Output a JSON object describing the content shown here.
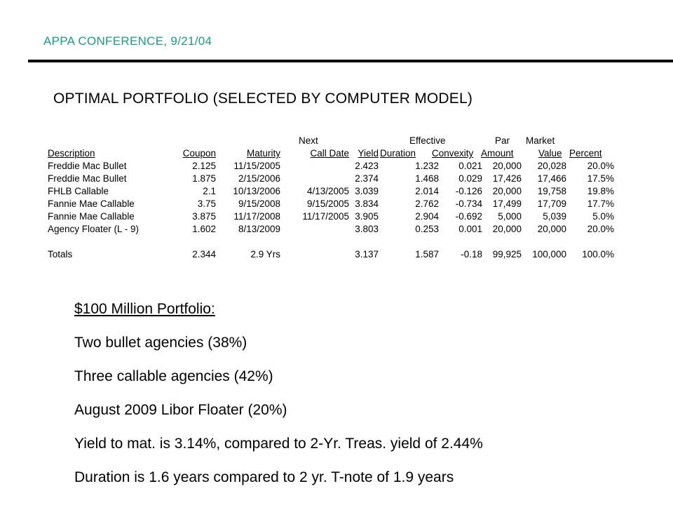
{
  "header": {
    "title": "APPA CONFERENCE, 9/21/04"
  },
  "section_title": "OPTIMAL PORTFOLIO (SELECTED BY COMPUTER MODEL)",
  "table": {
    "header_top": {
      "next": "Next",
      "effective": "Effective",
      "par": "Par",
      "market": "Market"
    },
    "columns": [
      "Description",
      "Coupon",
      "Maturity",
      "Call Date",
      "Yield",
      "Duration",
      "Convexity",
      "Amount",
      "Value",
      "Percent"
    ],
    "rows": [
      {
        "desc": "Freddie Mac Bullet",
        "coupon": "2.125",
        "maturity": "11/15/2005",
        "call": "",
        "yield": "2.423",
        "duration": "1.232",
        "convexity": "0.021",
        "par": "20,000",
        "mv": "20,028",
        "pct": "20.0%"
      },
      {
        "desc": "Freddie Mac Bullet",
        "coupon": "1.875",
        "maturity": "2/15/2006",
        "call": "",
        "yield": "2.374",
        "duration": "1.468",
        "convexity": "0.029",
        "par": "17,426",
        "mv": "17,466",
        "pct": "17.5%"
      },
      {
        "desc": "FHLB Callable",
        "coupon": "2.1",
        "maturity": "10/13/2006",
        "call": "4/13/2005",
        "yield": "3.039",
        "duration": "2.014",
        "convexity": "-0.126",
        "par": "20,000",
        "mv": "19,758",
        "pct": "19.8%"
      },
      {
        "desc": "Fannie Mae Callable",
        "coupon": "3.75",
        "maturity": "9/15/2008",
        "call": "9/15/2005",
        "yield": "3.834",
        "duration": "2.762",
        "convexity": "-0.734",
        "par": "17,499",
        "mv": "17,709",
        "pct": "17.7%"
      },
      {
        "desc": "Fannie Mae Callable",
        "coupon": "3.875",
        "maturity": "11/17/2008",
        "call": "11/17/2005",
        "yield": "3.905",
        "duration": "2.904",
        "convexity": "-0.692",
        "par": "5,000",
        "mv": "5,039",
        "pct": "5.0%"
      },
      {
        "desc": "Agency Floater (L - 9)",
        "coupon": "1.602",
        "maturity": "8/13/2009",
        "call": "",
        "yield": "3.803",
        "duration": "0.253",
        "convexity": "0.001",
        "par": "20,000",
        "mv": "20,000",
        "pct": "20.0%"
      }
    ],
    "totals": {
      "desc": "Totals",
      "coupon": "2.344",
      "maturity": "2.9 Yrs",
      "call": "",
      "yield": "3.137",
      "duration": "1.587",
      "convexity": "-0.18",
      "par": "99,925",
      "mv": "100,000",
      "pct": "100.0%"
    }
  },
  "summary": [
    "$100 Million Portfolio:",
    "Two bullet agencies (38%)",
    "Three callable agencies (42%)",
    "August 2009 Libor Floater (20%)",
    "Yield to mat. is 3.14%, compared to 2-Yr. Treas. yield of 2.44%",
    "Duration is 1.6 years compared to 2 yr. T-note of 1.9 years"
  ]
}
